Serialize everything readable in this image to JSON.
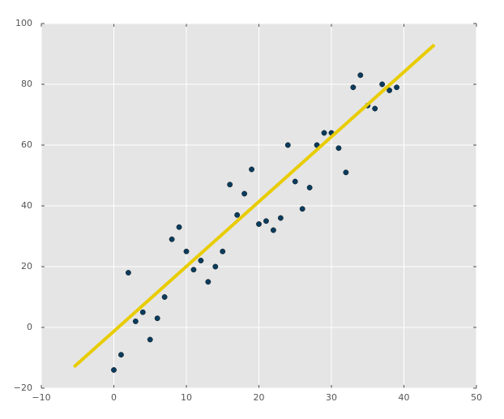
{
  "chart_data": {
    "type": "scatter",
    "series": [
      {
        "type": "scatter",
        "color": "#0b3c5d",
        "x": [
          0,
          1,
          2,
          3,
          4,
          5,
          6,
          7,
          8,
          9,
          10,
          11,
          12,
          13,
          14,
          15,
          16,
          17,
          18,
          19,
          20,
          21,
          22,
          23,
          24,
          25,
          26,
          27,
          28,
          29,
          30,
          31,
          32,
          33,
          34,
          35,
          36,
          37,
          38,
          39
        ],
        "values": [
          -14,
          -9,
          18,
          2,
          5,
          -4,
          3,
          10,
          29,
          33,
          25,
          19,
          22,
          15,
          20,
          25,
          47,
          37,
          44,
          52,
          34,
          35,
          32,
          36,
          60,
          48,
          39,
          46,
          60,
          64,
          64,
          59,
          51,
          79,
          83,
          73,
          72,
          80,
          78,
          79
        ]
      },
      {
        "type": "line",
        "color": "#e8cc00",
        "x": [
          -5.5,
          44.2
        ],
        "values": [
          -13,
          93
        ]
      }
    ],
    "xlim": [
      -10,
      50
    ],
    "xticks": [
      {
        "value": -10,
        "label": "−10"
      },
      0,
      10,
      20,
      30,
      40,
      50
    ],
    "ylim": [
      -20,
      100
    ],
    "yticks": [
      {
        "value": -20,
        "label": "−20"
      },
      0,
      20,
      40,
      60,
      80,
      100
    ],
    "grid": true
  }
}
